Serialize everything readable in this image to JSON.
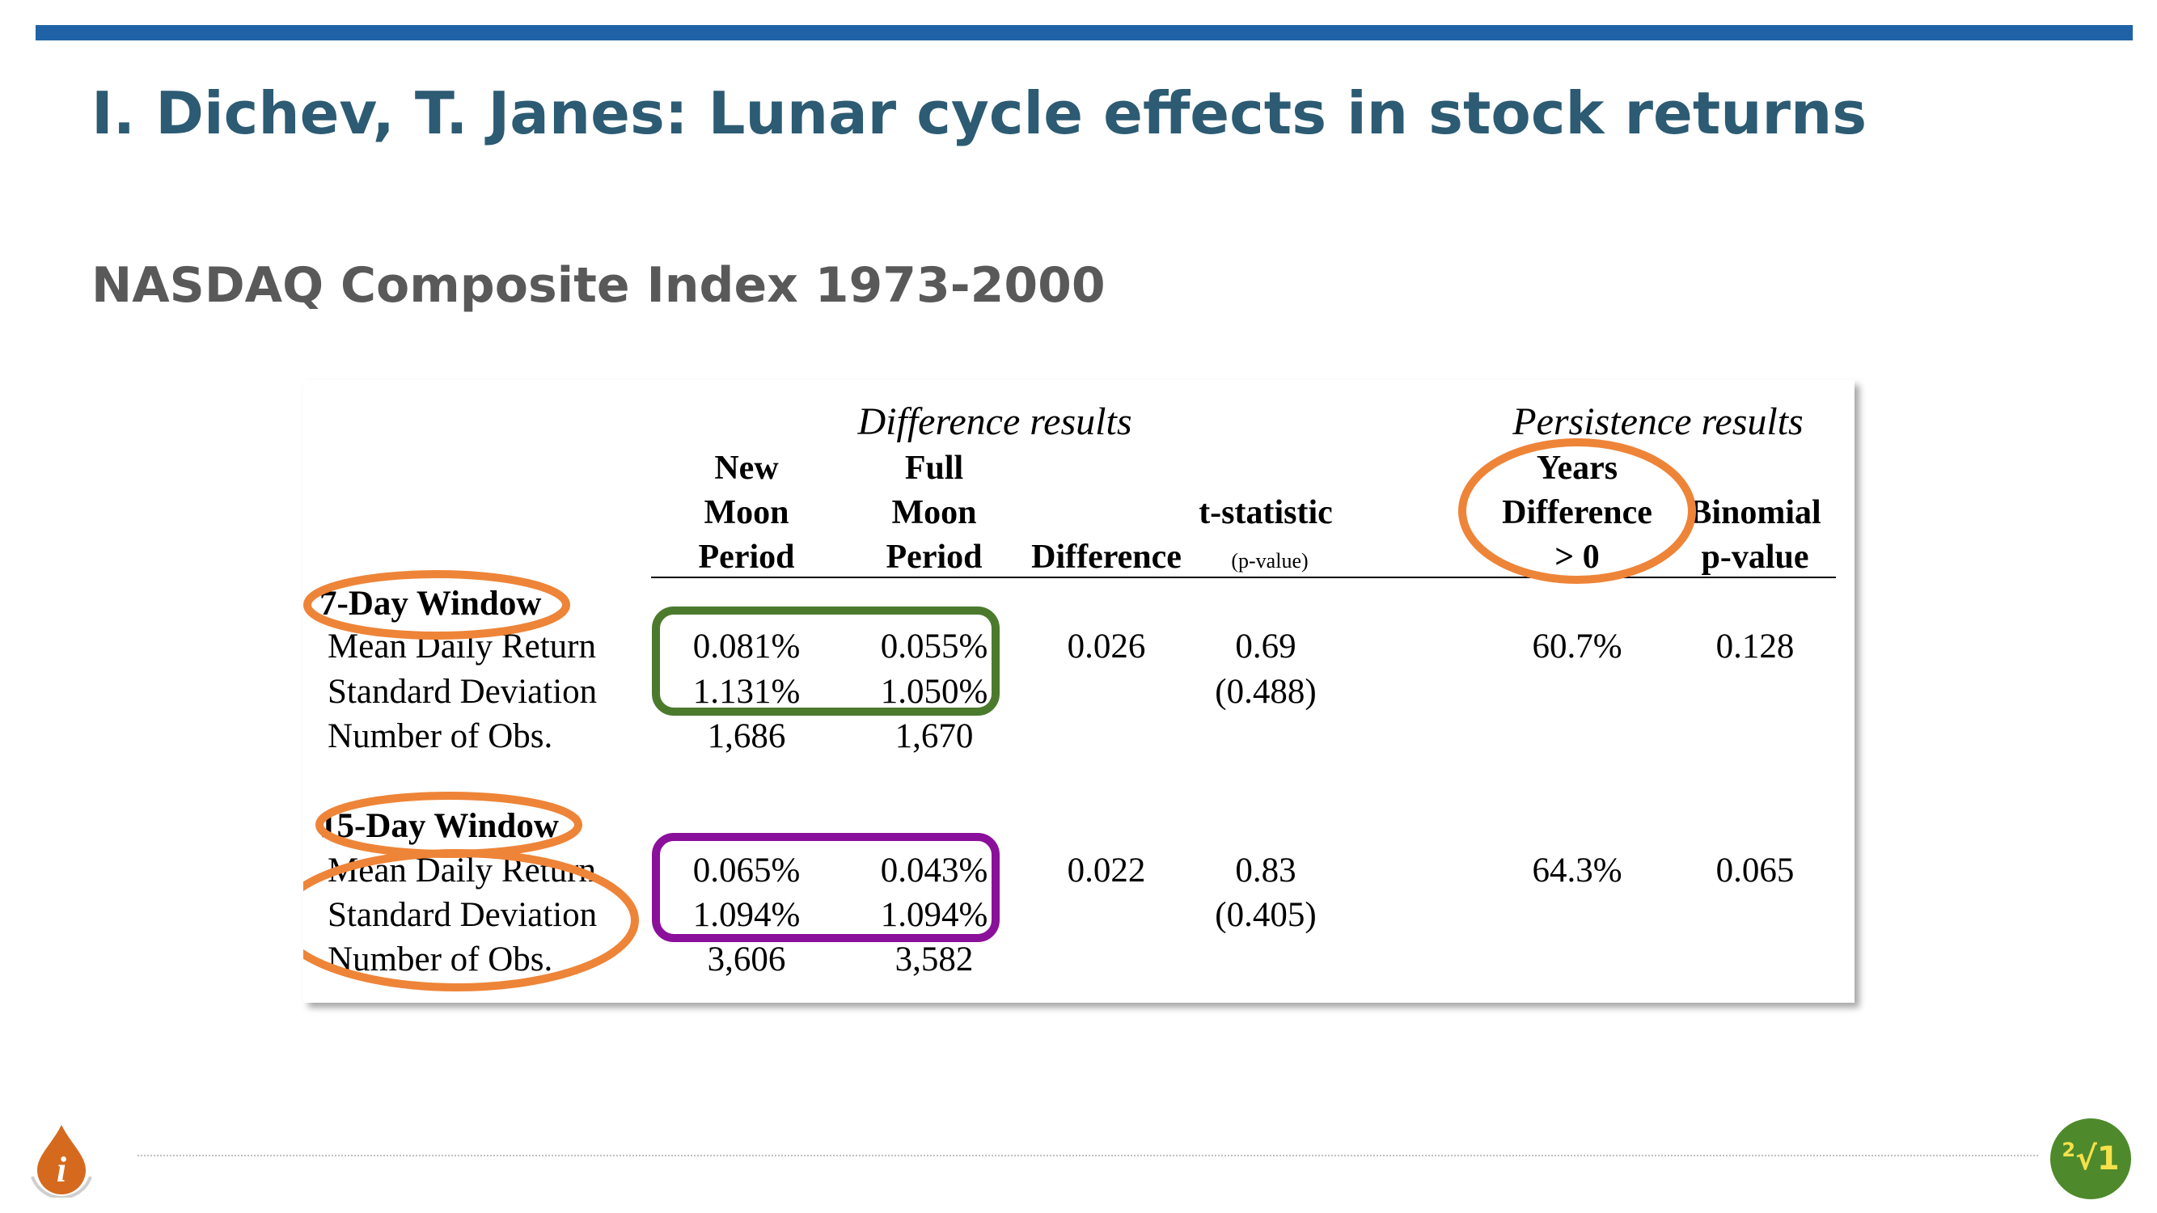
{
  "slide": {
    "title": "I. Dichev, T. Janes: Lunar cycle effects in stock returns",
    "subtitle": "NASDAQ Composite Index 1973-2000",
    "colors": {
      "top_bar": "#1f63a6",
      "title": "#2c5b73",
      "orange_highlight": "#ee8438",
      "green_highlight": "#4b7a2c",
      "purple_highlight": "#8a0f9a"
    }
  },
  "table": {
    "group_headers": {
      "difference": "Difference results",
      "persistence": "Persistence results"
    },
    "columns": {
      "new_moon": [
        "New",
        "Moon",
        "Period"
      ],
      "full_moon": [
        "Full",
        "Moon",
        "Period"
      ],
      "difference": "Difference",
      "t_stat": "t-statistic",
      "t_stat_sub": "(p-value)",
      "years_diff": [
        "Years",
        "Difference",
        "> 0"
      ],
      "binomial": [
        "Binomial",
        "p-value"
      ]
    },
    "rows_labels": [
      "Mean Daily Return",
      "Standard Deviation",
      "Number of Obs."
    ],
    "win7": {
      "name": "7-Day Window",
      "mean": {
        "new": "0.081%",
        "full": "0.055%",
        "diff": "0.026",
        "t": "0.69",
        "years": "60.7%",
        "binom": "0.128"
      },
      "sd": {
        "new": "1.131%",
        "full": "1.050%",
        "p": "(0.488)"
      },
      "obs": {
        "new": "1,686",
        "full": "1,670"
      }
    },
    "win15": {
      "name": "15-Day Window",
      "mean": {
        "new": "0.065%",
        "full": "0.043%",
        "diff": "0.022",
        "t": "0.83",
        "years": "64.3%",
        "binom": "0.065"
      },
      "sd": {
        "new": "1.094%",
        "full": "1.094%",
        "p": "(0.405)"
      },
      "obs": {
        "new": "3,606",
        "full": "3,582"
      }
    }
  },
  "footer": {
    "left_logo_glyph": "i",
    "right_logo": {
      "superscript": "2",
      "text": "√1"
    }
  }
}
